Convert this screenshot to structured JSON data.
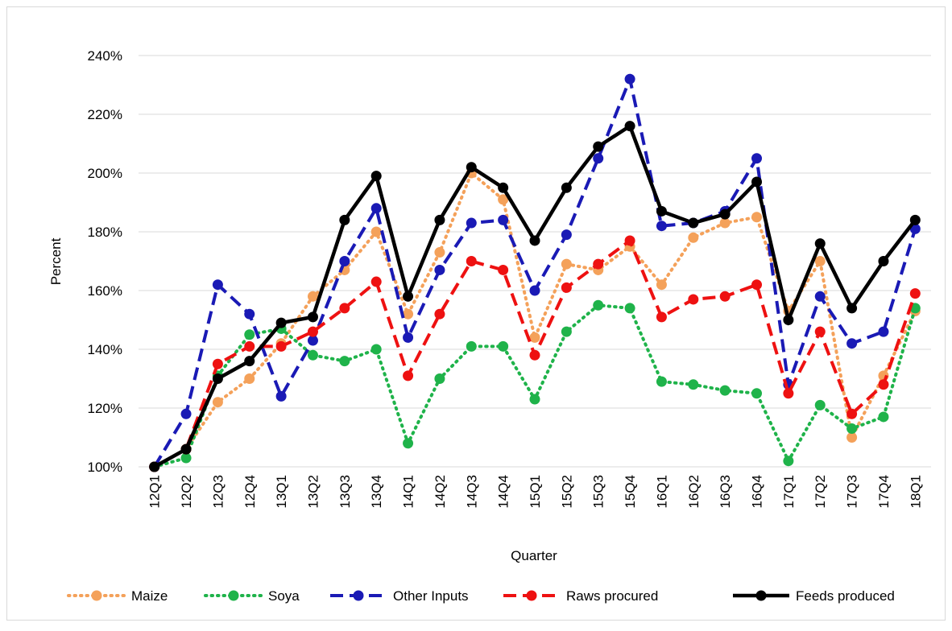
{
  "chart_data": {
    "type": "line",
    "y_label": "Percent",
    "x_label": "Quarter",
    "categories": [
      "12Q1",
      "12Q2",
      "12Q3",
      "12Q4",
      "13Q1",
      "13Q2",
      "13Q3",
      "13Q4",
      "14Q1",
      "14Q2",
      "14Q3",
      "14Q4",
      "15Q1",
      "15Q2",
      "15Q3",
      "15Q4",
      "16Q1",
      "16Q2",
      "16Q3",
      "16Q4",
      "17Q1",
      "17Q2",
      "17Q3",
      "17Q4",
      "18Q1"
    ],
    "series": [
      {
        "name": "Maize",
        "color": "#f4a15a",
        "dash": "dotted",
        "values": [
          100,
          106,
          122,
          130,
          142,
          158,
          167,
          180,
          152,
          173,
          200,
          191,
          144,
          169,
          167,
          175,
          162,
          178,
          183,
          185,
          153,
          170,
          110,
          131,
          153
        ]
      },
      {
        "name": "Soya",
        "color": "#1fb34a",
        "dash": "dotted",
        "values": [
          100,
          103,
          131,
          145,
          147,
          138,
          136,
          140,
          108,
          130,
          141,
          141,
          123,
          146,
          155,
          154,
          129,
          128,
          126,
          125,
          102,
          121,
          113,
          117,
          154
        ]
      },
      {
        "name": "Other Inputs",
        "color": "#1a1ab5",
        "dash": "dashed",
        "values": [
          100,
          118,
          162,
          152,
          124,
          143,
          170,
          188,
          144,
          167,
          183,
          184,
          160,
          179,
          205,
          232,
          182,
          183,
          187,
          205,
          128,
          158,
          142,
          146,
          181
        ]
      },
      {
        "name": "Raws procured",
        "color": "#ee1111",
        "dash": "dashed",
        "values": [
          100,
          106,
          135,
          141,
          141,
          146,
          154,
          163,
          131,
          152,
          170,
          167,
          138,
          161,
          169,
          177,
          151,
          157,
          158,
          162,
          125,
          146,
          118,
          128,
          159
        ]
      },
      {
        "name": "Feeds produced",
        "color": "#000000",
        "dash": "solid",
        "values": [
          100,
          106,
          130,
          136,
          149,
          151,
          184,
          199,
          158,
          184,
          202,
          195,
          177,
          195,
          209,
          216,
          187,
          183,
          186,
          197,
          150,
          176,
          154,
          170,
          184
        ]
      }
    ],
    "ylim": [
      100,
      240
    ],
    "yticks": [
      {
        "value": 100,
        "label": "100%"
      },
      {
        "value": 120,
        "label": "120%"
      },
      {
        "value": 140,
        "label": "140%"
      },
      {
        "value": 160,
        "label": "160%"
      },
      {
        "value": 180,
        "label": "180%"
      },
      {
        "value": 200,
        "label": "200%"
      },
      {
        "value": 220,
        "label": "220%"
      },
      {
        "value": 240,
        "label": "240%"
      }
    ],
    "grid": true,
    "legend": "bottom"
  }
}
